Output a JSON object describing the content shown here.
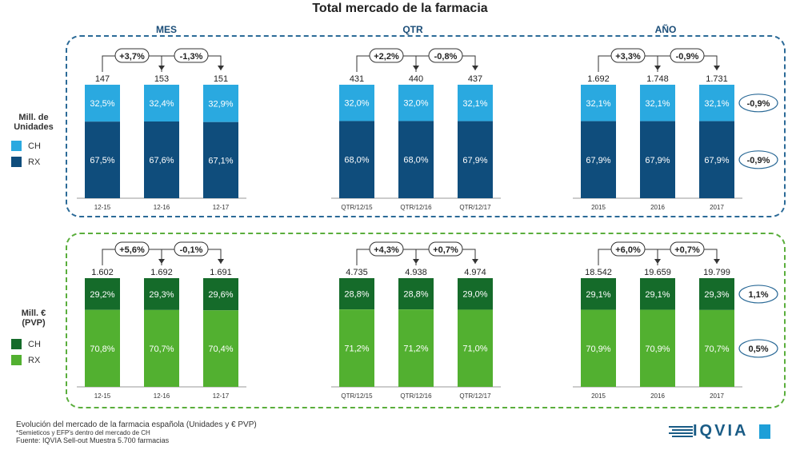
{
  "title": "Total mercado de la farmacia",
  "sections": [
    "MES",
    "QTR",
    "AÑO"
  ],
  "units_block": {
    "label_line1": "Mill. de",
    "label_line2": "Unidades",
    "legend": [
      {
        "label": "CH",
        "color": "#2aa9e0"
      },
      {
        "label": "RX",
        "color": "#0f4d7c"
      }
    ],
    "growth_ch": "-0,9%",
    "growth_rx": "-0,9%"
  },
  "value_block": {
    "label_line1": "Mill. €",
    "label_line2": "(PVP)",
    "legend": [
      {
        "label": "CH",
        "color": "#156b2a"
      },
      {
        "label": "RX",
        "color": "#52b030"
      }
    ],
    "growth_ch": "1,1%",
    "growth_rx": "0,5%"
  },
  "footer": {
    "line1": "Evolución del mercado de la farmacia española (Unidades y € PVP)",
    "line2": "*Semieticos y EFP's dentro del mercado de CH",
    "line3": "Fuente: IQVIA Sell-out Muestra 5.700 farmacias"
  },
  "logo": {
    "text": "IQVIA"
  },
  "chart_data": [
    {
      "type": "bar",
      "stacked": true,
      "unit": "Mill. de Unidades",
      "groups": [
        {
          "section": "MES",
          "categories": [
            "12-15",
            "12-16",
            "12-17"
          ],
          "totals": [
            "147",
            "153",
            "151"
          ],
          "ch_share": [
            "32,5%",
            "32,4%",
            "32,9%"
          ],
          "rx_share": [
            "67,5%",
            "67,6%",
            "67,1%"
          ],
          "ch_values": [
            32.5,
            32.4,
            32.9
          ],
          "rx_values": [
            67.5,
            67.6,
            67.1
          ],
          "changes": [
            "+3,7%",
            "-1,3%"
          ]
        },
        {
          "section": "QTR",
          "categories": [
            "QTR/12/15",
            "QTR/12/16",
            "QTR/12/17"
          ],
          "totals": [
            "431",
            "440",
            "437"
          ],
          "ch_share": [
            "32,0%",
            "32,0%",
            "32,1%"
          ],
          "rx_share": [
            "68,0%",
            "68,0%",
            "67,9%"
          ],
          "ch_values": [
            32.0,
            32.0,
            32.1
          ],
          "rx_values": [
            68.0,
            68.0,
            67.9
          ],
          "changes": [
            "+2,2%",
            "-0,8%"
          ]
        },
        {
          "section": "AÑO",
          "categories": [
            "2015",
            "2016",
            "2017"
          ],
          "totals": [
            "1.692",
            "1.748",
            "1.731"
          ],
          "ch_share": [
            "32,1%",
            "32,1%",
            "32,1%"
          ],
          "rx_share": [
            "67,9%",
            "67,9%",
            "67,9%"
          ],
          "ch_values": [
            32.1,
            32.1,
            32.1
          ],
          "rx_values": [
            67.9,
            67.9,
            67.9
          ],
          "changes": [
            "+3,3%",
            "-0,9%"
          ]
        }
      ]
    },
    {
      "type": "bar",
      "stacked": true,
      "unit": "Mill. € (PVP)",
      "groups": [
        {
          "section": "MES",
          "categories": [
            "12-15",
            "12-16",
            "12-17"
          ],
          "totals": [
            "1.602",
            "1.692",
            "1.691"
          ],
          "ch_share": [
            "29,2%",
            "29,3%",
            "29,6%"
          ],
          "rx_share": [
            "70,8%",
            "70,7%",
            "70,4%"
          ],
          "ch_values": [
            29.2,
            29.3,
            29.6
          ],
          "rx_values": [
            70.8,
            70.7,
            70.4
          ],
          "changes": [
            "+5,6%",
            "-0,1%"
          ]
        },
        {
          "section": "QTR",
          "categories": [
            "QTR/12/15",
            "QTR/12/16",
            "QTR/12/17"
          ],
          "totals": [
            "4.735",
            "4.938",
            "4.974"
          ],
          "ch_share": [
            "28,8%",
            "28,8%",
            "29,0%"
          ],
          "rx_share": [
            "71,2%",
            "71,2%",
            "71,0%"
          ],
          "ch_values": [
            28.8,
            28.8,
            29.0
          ],
          "rx_values": [
            71.2,
            71.2,
            71.0
          ],
          "changes": [
            "+4,3%",
            "+0,7%"
          ]
        },
        {
          "section": "AÑO",
          "categories": [
            "2015",
            "2016",
            "2017"
          ],
          "totals": [
            "18.542",
            "19.659",
            "19.799"
          ],
          "ch_share": [
            "29,1%",
            "29,1%",
            "29,3%"
          ],
          "rx_share": [
            "70,9%",
            "70,9%",
            "70,7%"
          ],
          "ch_values": [
            29.1,
            29.1,
            29.3
          ],
          "rx_values": [
            70.9,
            70.9,
            70.7
          ],
          "changes": [
            "+6,0%",
            "+0,7%"
          ]
        }
      ]
    }
  ]
}
